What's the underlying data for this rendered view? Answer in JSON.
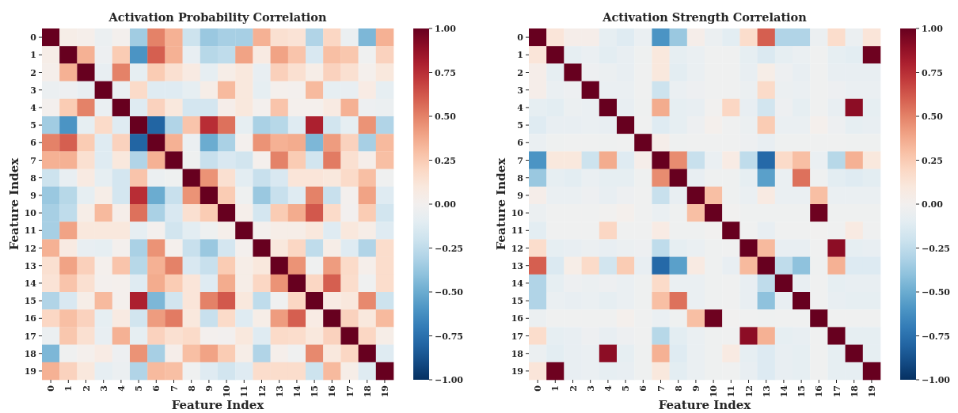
{
  "chart_data": [
    {
      "type": "heatmap",
      "title": "Activation Probability Correlation",
      "xlabel": "Feature Index",
      "ylabel": "Feature Index",
      "categories": [
        "0",
        "1",
        "2",
        "3",
        "4",
        "5",
        "6",
        "7",
        "8",
        "9",
        "10",
        "11",
        "12",
        "13",
        "14",
        "15",
        "16",
        "17",
        "18",
        "19"
      ],
      "y_categories": [
        "0",
        "1",
        "2",
        "3",
        "4",
        "5",
        "6",
        "7",
        "8",
        "9",
        "10",
        "11",
        "12",
        "13",
        "14",
        "15",
        "16",
        "17",
        "18",
        "19"
      ],
      "clim": [
        -1,
        1
      ],
      "cticks": [
        {
          "value": -1,
          "label": "−1.00"
        },
        {
          "value": -0.75,
          "label": "−0.75"
        },
        {
          "value": -0.5,
          "label": "−0.50"
        },
        {
          "value": -0.25,
          "label": "−0.25"
        },
        {
          "value": 0,
          "label": "0.00"
        },
        {
          "value": 0.25,
          "label": "0.25"
        },
        {
          "value": 0.5,
          "label": "0.50"
        },
        {
          "value": 0.75,
          "label": "0.75"
        },
        {
          "value": 1,
          "label": "1.00"
        }
      ],
      "cells": [
        [
          1,
          0.05,
          0.03,
          -0.05,
          0.01,
          -0.35,
          0.5,
          0.35,
          -0.2,
          -0.37,
          -0.33,
          -0.33,
          0.35,
          0.15,
          0.13,
          -0.3,
          0.2,
          -0.05,
          -0.45,
          0.35
        ],
        [
          0.05,
          1,
          0.35,
          -0.04,
          0.25,
          -0.6,
          0.6,
          0.35,
          -0.07,
          -0.28,
          -0.25,
          0.4,
          0.08,
          0.4,
          0.28,
          -0.15,
          0.3,
          0.27,
          -0.02,
          0.22
        ],
        [
          0.03,
          0.35,
          1,
          -0.07,
          0.5,
          -0.08,
          0.25,
          0.15,
          0.08,
          -0.08,
          0.05,
          0.1,
          -0.07,
          0.23,
          0.15,
          0.05,
          0.22,
          0.15,
          0.02,
          0.1
        ],
        [
          -0.05,
          -0.04,
          -0.07,
          1,
          -0.06,
          0.18,
          -0.12,
          -0.12,
          -0.08,
          0.05,
          0.32,
          0.1,
          -0.08,
          0.02,
          0.01,
          0.32,
          -0.08,
          -0.07,
          0.07,
          -0.08
        ],
        [
          0.01,
          0.25,
          0.5,
          -0.06,
          1,
          -0.12,
          0.22,
          0.1,
          -0.17,
          -0.17,
          0.04,
          0.1,
          0.01,
          0.28,
          0.02,
          0.02,
          0.08,
          0.35,
          -0.04,
          -0.05
        ],
        [
          -0.35,
          -0.6,
          -0.08,
          0.18,
          -0.12,
          1,
          -0.8,
          -0.3,
          0.28,
          0.75,
          0.55,
          -0.08,
          -0.32,
          -0.28,
          -0.12,
          0.8,
          -0.18,
          -0.08,
          0.45,
          -0.3
        ],
        [
          0.5,
          0.6,
          0.25,
          -0.12,
          0.22,
          -0.8,
          1,
          0.35,
          -0.05,
          -0.5,
          -0.32,
          0.01,
          0.45,
          0.35,
          0.37,
          -0.45,
          0.42,
          0.22,
          -0.33,
          0.32
        ],
        [
          0.35,
          0.35,
          0.15,
          -0.12,
          0.1,
          -0.3,
          0.35,
          1,
          -0.03,
          -0.22,
          -0.15,
          -0.18,
          0.02,
          0.5,
          0.25,
          -0.18,
          0.52,
          0.15,
          0.04,
          0.3
        ],
        [
          -0.2,
          -0.07,
          0.08,
          -0.08,
          -0.17,
          0.28,
          -0.05,
          -0.03,
          1,
          0.45,
          0.15,
          -0.1,
          -0.22,
          -0.15,
          0.12,
          0.12,
          0.1,
          0.18,
          0.3,
          -0.02
        ],
        [
          -0.37,
          -0.28,
          -0.08,
          0.05,
          -0.17,
          0.75,
          -0.5,
          -0.22,
          0.45,
          1,
          0.25,
          -0.03,
          -0.37,
          -0.22,
          -0.12,
          0.5,
          -0.22,
          0.01,
          0.4,
          -0.12
        ],
        [
          -0.33,
          -0.25,
          0.05,
          0.32,
          0.04,
          0.55,
          -0.32,
          -0.15,
          0.15,
          0.25,
          1,
          0.03,
          -0.17,
          0.25,
          0.37,
          0.62,
          0.18,
          0,
          0.25,
          -0.18
        ],
        [
          -0.33,
          0.4,
          0.1,
          0.1,
          0.1,
          -0.08,
          0.01,
          -0.18,
          -0.1,
          -0.03,
          0.03,
          1,
          0.01,
          0.05,
          0.05,
          0.1,
          -0.12,
          0.1,
          0.05,
          -0.12
        ],
        [
          0.35,
          0.08,
          -0.07,
          -0.08,
          0.01,
          -0.32,
          0.45,
          0.02,
          -0.22,
          -0.37,
          -0.17,
          0.01,
          1,
          0.1,
          0.2,
          -0.25,
          0.05,
          -0.12,
          -0.3,
          0.17
        ],
        [
          0.15,
          0.4,
          0.23,
          0.02,
          0.28,
          -0.28,
          0.35,
          0.5,
          -0.15,
          -0.22,
          0.25,
          0.05,
          0.1,
          1,
          0.45,
          -0.02,
          0.42,
          0.18,
          0.03,
          0.17
        ],
        [
          0.13,
          0.28,
          0.15,
          0.01,
          0.02,
          -0.12,
          0.37,
          0.25,
          0.12,
          -0.12,
          0.37,
          0.05,
          0.2,
          0.45,
          1,
          0.2,
          0.6,
          0.17,
          -0.02,
          0.17
        ],
        [
          -0.3,
          -0.15,
          0.05,
          0.32,
          0.02,
          0.8,
          -0.45,
          -0.18,
          0.12,
          0.5,
          0.62,
          0.1,
          -0.25,
          -0.02,
          0.2,
          1,
          0.07,
          0.1,
          0.48,
          -0.2
        ],
        [
          0.2,
          0.3,
          0.22,
          -0.08,
          0.08,
          -0.18,
          0.42,
          0.52,
          0.1,
          -0.22,
          0.18,
          -0.12,
          0.05,
          0.42,
          0.6,
          0.07,
          1,
          0.22,
          0.1,
          0.32
        ],
        [
          -0.05,
          0.27,
          0.15,
          -0.07,
          0.35,
          -0.08,
          0.22,
          0.15,
          0.18,
          0.01,
          0,
          0.1,
          -0.12,
          0.18,
          0.17,
          0.1,
          0.22,
          1,
          0.2,
          0.05
        ],
        [
          -0.45,
          -0.02,
          0.02,
          0.07,
          -0.04,
          0.45,
          -0.33,
          0.04,
          0.3,
          0.4,
          0.25,
          0.05,
          -0.3,
          0.03,
          -0.02,
          0.48,
          0.1,
          0.2,
          1,
          -0.12
        ],
        [
          0.35,
          0.22,
          0.1,
          -0.08,
          -0.05,
          -0.3,
          0.32,
          0.3,
          -0.02,
          -0.12,
          -0.18,
          -0.12,
          0.17,
          0.17,
          0.17,
          -0.2,
          0.32,
          0.05,
          -0.12,
          1
        ]
      ]
    },
    {
      "type": "heatmap",
      "title": "Activation Strength Correlation",
      "xlabel": "Feature Index",
      "ylabel": "Feature Index",
      "categories": [
        "0",
        "1",
        "2",
        "3",
        "4",
        "5",
        "6",
        "7",
        "8",
        "9",
        "10",
        "11",
        "12",
        "13",
        "14",
        "15",
        "16",
        "17",
        "18",
        "19"
      ],
      "y_categories": [
        "0",
        "1",
        "2",
        "3",
        "4",
        "5",
        "6",
        "7",
        "8",
        "9",
        "10",
        "11",
        "12",
        "13",
        "14",
        "15",
        "16",
        "17",
        "18",
        "19"
      ],
      "clim": [
        -1,
        1
      ],
      "cticks": [
        {
          "value": -1,
          "label": "−1.00"
        },
        {
          "value": -0.75,
          "label": "−0.75"
        },
        {
          "value": -0.5,
          "label": "−0.50"
        },
        {
          "value": -0.25,
          "label": "−0.25"
        },
        {
          "value": 0,
          "label": "0.00"
        },
        {
          "value": 0.25,
          "label": "0.25"
        },
        {
          "value": 0.5,
          "label": "0.50"
        },
        {
          "value": 0.75,
          "label": "0.75"
        },
        {
          "value": 1,
          "label": "1.00"
        }
      ],
      "cells": [
        [
          1,
          0.12,
          0.04,
          0.04,
          -0.08,
          -0.12,
          -0.06,
          -0.6,
          -0.37,
          0.04,
          -0.05,
          -0.1,
          0.17,
          0.6,
          -0.3,
          -0.3,
          -0.05,
          0.17,
          -0.05,
          0.12
        ],
        [
          0.12,
          1,
          -0.08,
          -0.06,
          -0.1,
          -0.07,
          -0.03,
          0.1,
          -0.08,
          -0.06,
          -0.02,
          -0.02,
          -0.08,
          -0.14,
          -0.08,
          -0.06,
          -0.02,
          -0.08,
          -0.1,
          0.98
        ],
        [
          0.04,
          -0.08,
          1,
          -0.04,
          -0.05,
          -0.07,
          -0.02,
          0.1,
          -0.1,
          -0.06,
          -0.02,
          -0.02,
          -0.07,
          0.05,
          -0.04,
          -0.07,
          -0.02,
          -0.07,
          -0.07,
          -0.07
        ],
        [
          0.04,
          -0.06,
          -0.04,
          1,
          -0.06,
          -0.06,
          -0.02,
          -0.2,
          -0.06,
          -0.04,
          -0.02,
          -0.02,
          -0.05,
          0.18,
          -0.05,
          -0.06,
          -0.02,
          -0.04,
          -0.06,
          -0.06
        ],
        [
          -0.08,
          -0.1,
          -0.05,
          -0.06,
          1,
          -0.07,
          -0.03,
          0.37,
          -0.08,
          -0.07,
          -0.01,
          0.2,
          -0.07,
          -0.18,
          -0.04,
          -0.08,
          -0.02,
          -0.07,
          0.9,
          -0.08
        ],
        [
          -0.12,
          -0.07,
          -0.07,
          -0.06,
          -0.07,
          1,
          -0.02,
          -0.12,
          -0.08,
          -0.04,
          0.02,
          -0.02,
          -0.05,
          0.25,
          -0.06,
          -0.06,
          0.02,
          -0.04,
          -0.08,
          -0.07
        ],
        [
          -0.06,
          -0.03,
          -0.02,
          -0.02,
          -0.03,
          -0.02,
          1,
          0.04,
          -0.03,
          -0.02,
          -0.02,
          -0.02,
          -0.04,
          -0.07,
          -0.03,
          -0.03,
          -0.02,
          -0.02,
          -0.03,
          -0.03
        ],
        [
          -0.6,
          0.1,
          0.1,
          -0.2,
          0.37,
          -0.12,
          0.04,
          1,
          0.47,
          -0.22,
          -0.06,
          0.07,
          -0.25,
          -0.78,
          0.18,
          0.3,
          -0.06,
          -0.28,
          0.35,
          0.1
        ],
        [
          -0.37,
          -0.08,
          -0.1,
          -0.06,
          -0.08,
          -0.08,
          -0.03,
          0.47,
          1,
          -0.07,
          -0.03,
          -0.03,
          -0.08,
          -0.55,
          -0.06,
          0.55,
          -0.03,
          -0.1,
          -0.12,
          -0.1
        ],
        [
          0.04,
          -0.06,
          -0.06,
          -0.04,
          -0.07,
          -0.04,
          -0.02,
          -0.22,
          -0.07,
          1,
          0.3,
          -0.03,
          -0.06,
          0.08,
          -0.06,
          -0.06,
          0.3,
          -0.06,
          -0.06,
          -0.06
        ],
        [
          -0.05,
          -0.02,
          -0.02,
          -0.02,
          -0.01,
          0.02,
          -0.02,
          -0.06,
          -0.03,
          0.3,
          1,
          -0.01,
          -0.03,
          -0.03,
          -0.03,
          -0.03,
          0.98,
          -0.03,
          -0.03,
          -0.03
        ],
        [
          -0.1,
          -0.02,
          -0.02,
          -0.02,
          0.2,
          -0.02,
          -0.02,
          0.07,
          -0.03,
          -0.03,
          -0.01,
          1,
          -0.02,
          -0.07,
          -0.02,
          -0.02,
          -0.01,
          -0.02,
          0.08,
          -0.02
        ],
        [
          0.17,
          -0.08,
          -0.07,
          -0.05,
          -0.07,
          -0.05,
          -0.04,
          -0.25,
          -0.08,
          -0.06,
          -0.03,
          -0.02,
          1,
          0.32,
          -0.07,
          -0.07,
          -0.02,
          0.9,
          -0.08,
          -0.07
        ],
        [
          0.6,
          -0.14,
          0.05,
          0.18,
          -0.18,
          0.25,
          -0.07,
          -0.78,
          -0.55,
          0.08,
          -0.03,
          -0.07,
          0.32,
          1,
          -0.25,
          -0.4,
          -0.03,
          0.35,
          -0.13,
          -0.13
        ],
        [
          -0.3,
          -0.08,
          -0.04,
          -0.05,
          -0.04,
          -0.06,
          -0.03,
          0.18,
          -0.06,
          -0.06,
          -0.03,
          -0.02,
          -0.07,
          -0.25,
          1,
          -0.07,
          -0.02,
          -0.08,
          -0.07,
          -0.07
        ],
        [
          -0.3,
          -0.06,
          -0.07,
          -0.06,
          -0.08,
          -0.06,
          -0.03,
          0.3,
          0.55,
          -0.06,
          -0.03,
          -0.02,
          -0.07,
          -0.4,
          -0.07,
          1,
          -0.02,
          -0.07,
          -0.08,
          -0.08
        ],
        [
          -0.05,
          -0.02,
          -0.02,
          -0.02,
          -0.02,
          0.02,
          -0.02,
          -0.06,
          -0.03,
          0.3,
          0.98,
          -0.01,
          -0.02,
          -0.03,
          -0.02,
          -0.02,
          1,
          -0.02,
          -0.02,
          -0.02
        ],
        [
          0.17,
          -0.08,
          -0.07,
          -0.04,
          -0.07,
          -0.04,
          -0.02,
          -0.28,
          -0.1,
          -0.06,
          -0.03,
          -0.02,
          0.9,
          0.35,
          -0.08,
          -0.07,
          -0.02,
          1,
          -0.08,
          -0.08
        ],
        [
          -0.05,
          -0.1,
          -0.07,
          -0.06,
          0.9,
          -0.08,
          -0.03,
          0.35,
          -0.12,
          -0.06,
          -0.03,
          0.08,
          -0.08,
          -0.13,
          -0.07,
          -0.08,
          -0.02,
          -0.08,
          1,
          -0.08
        ],
        [
          0.12,
          0.98,
          -0.07,
          -0.06,
          -0.08,
          -0.07,
          -0.03,
          0.1,
          -0.1,
          -0.06,
          -0.03,
          -0.02,
          -0.07,
          -0.13,
          -0.07,
          -0.08,
          -0.02,
          -0.08,
          -0.08,
          1
        ]
      ]
    }
  ]
}
